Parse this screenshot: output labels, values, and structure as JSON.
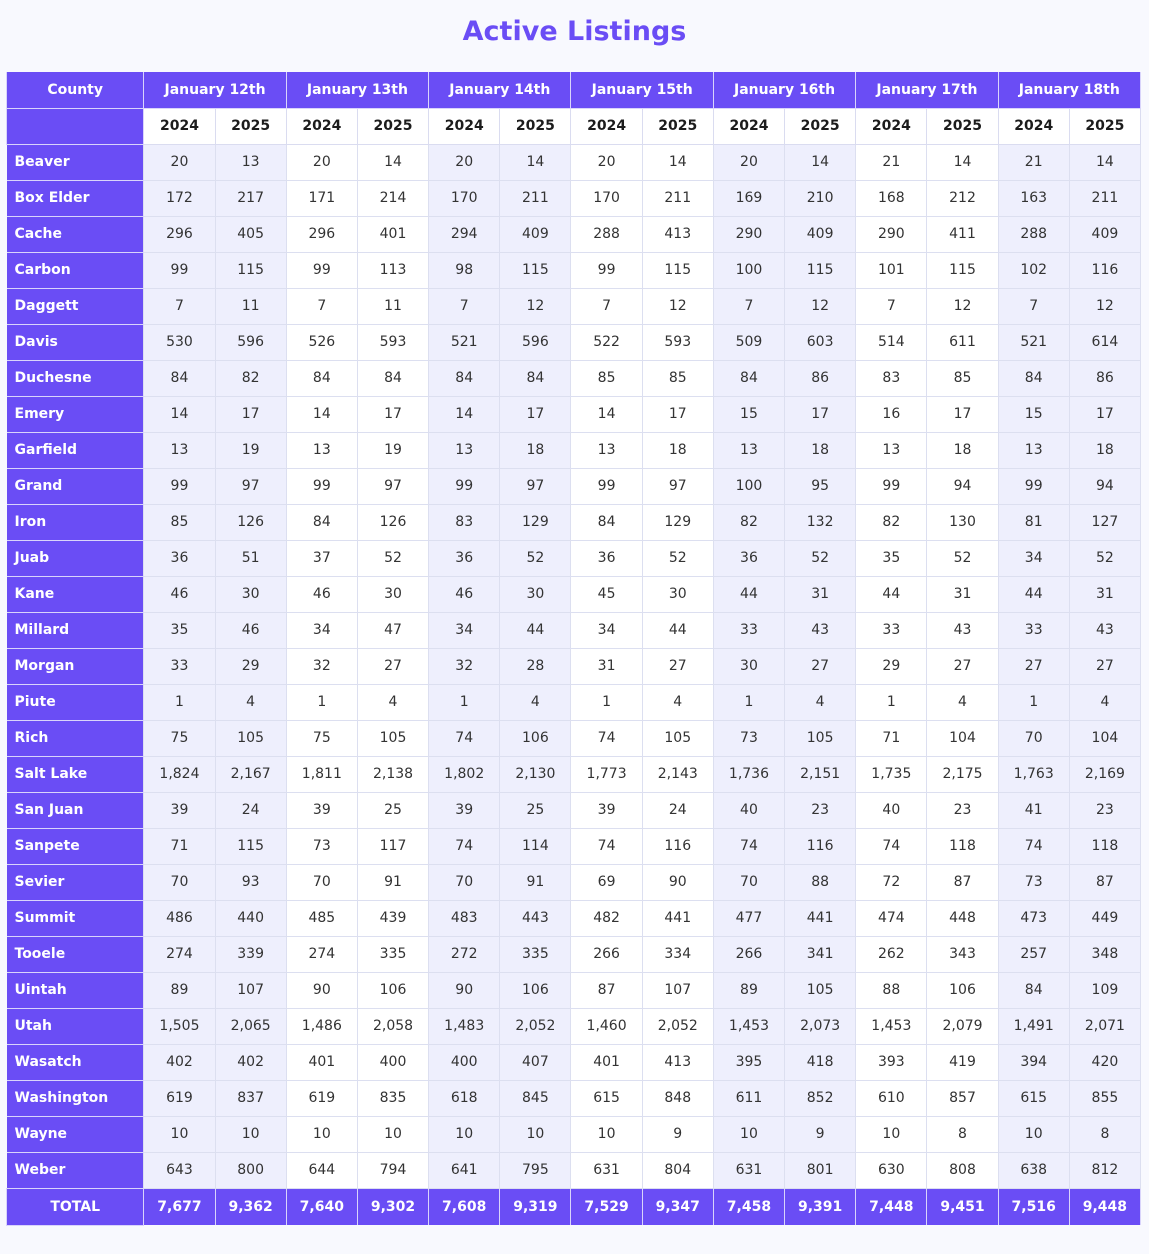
{
  "title": "Active Listings",
  "header": {
    "county_label": "County",
    "dates": [
      "January 12th",
      "January 13th",
      "January 14th",
      "January 15th",
      "January 16th",
      "January 17th",
      "January 18th"
    ],
    "years": [
      "2024",
      "2025"
    ]
  },
  "colors": {
    "accent": "#6a4df5",
    "row_light": "#eeeffd",
    "row_white": "#ffffff",
    "title": "#6a4df5"
  },
  "rows": [
    {
      "county": "Beaver",
      "values": [
        "20",
        "13",
        "20",
        "14",
        "20",
        "14",
        "20",
        "14",
        "20",
        "14",
        "21",
        "14",
        "21",
        "14"
      ]
    },
    {
      "county": "Box Elder",
      "values": [
        "172",
        "217",
        "171",
        "214",
        "170",
        "211",
        "170",
        "211",
        "169",
        "210",
        "168",
        "212",
        "163",
        "211"
      ]
    },
    {
      "county": "Cache",
      "values": [
        "296",
        "405",
        "296",
        "401",
        "294",
        "409",
        "288",
        "413",
        "290",
        "409",
        "290",
        "411",
        "288",
        "409"
      ]
    },
    {
      "county": "Carbon",
      "values": [
        "99",
        "115",
        "99",
        "113",
        "98",
        "115",
        "99",
        "115",
        "100",
        "115",
        "101",
        "115",
        "102",
        "116"
      ]
    },
    {
      "county": "Daggett",
      "values": [
        "7",
        "11",
        "7",
        "11",
        "7",
        "12",
        "7",
        "12",
        "7",
        "12",
        "7",
        "12",
        "7",
        "12"
      ]
    },
    {
      "county": "Davis",
      "values": [
        "530",
        "596",
        "526",
        "593",
        "521",
        "596",
        "522",
        "593",
        "509",
        "603",
        "514",
        "611",
        "521",
        "614"
      ]
    },
    {
      "county": "Duchesne",
      "values": [
        "84",
        "82",
        "84",
        "84",
        "84",
        "84",
        "85",
        "85",
        "84",
        "86",
        "83",
        "85",
        "84",
        "86"
      ]
    },
    {
      "county": "Emery",
      "values": [
        "14",
        "17",
        "14",
        "17",
        "14",
        "17",
        "14",
        "17",
        "15",
        "17",
        "16",
        "17",
        "15",
        "17"
      ]
    },
    {
      "county": "Garfield",
      "values": [
        "13",
        "19",
        "13",
        "19",
        "13",
        "18",
        "13",
        "18",
        "13",
        "18",
        "13",
        "18",
        "13",
        "18"
      ]
    },
    {
      "county": "Grand",
      "values": [
        "99",
        "97",
        "99",
        "97",
        "99",
        "97",
        "99",
        "97",
        "100",
        "95",
        "99",
        "94",
        "99",
        "94"
      ]
    },
    {
      "county": "Iron",
      "values": [
        "85",
        "126",
        "84",
        "126",
        "83",
        "129",
        "84",
        "129",
        "82",
        "132",
        "82",
        "130",
        "81",
        "127"
      ]
    },
    {
      "county": "Juab",
      "values": [
        "36",
        "51",
        "37",
        "52",
        "36",
        "52",
        "36",
        "52",
        "36",
        "52",
        "35",
        "52",
        "34",
        "52"
      ]
    },
    {
      "county": "Kane",
      "values": [
        "46",
        "30",
        "46",
        "30",
        "46",
        "30",
        "45",
        "30",
        "44",
        "31",
        "44",
        "31",
        "44",
        "31"
      ]
    },
    {
      "county": "Millard",
      "values": [
        "35",
        "46",
        "34",
        "47",
        "34",
        "44",
        "34",
        "44",
        "33",
        "43",
        "33",
        "43",
        "33",
        "43"
      ]
    },
    {
      "county": "Morgan",
      "values": [
        "33",
        "29",
        "32",
        "27",
        "32",
        "28",
        "31",
        "27",
        "30",
        "27",
        "29",
        "27",
        "27",
        "27"
      ]
    },
    {
      "county": "Piute",
      "values": [
        "1",
        "4",
        "1",
        "4",
        "1",
        "4",
        "1",
        "4",
        "1",
        "4",
        "1",
        "4",
        "1",
        "4"
      ]
    },
    {
      "county": "Rich",
      "values": [
        "75",
        "105",
        "75",
        "105",
        "74",
        "106",
        "74",
        "105",
        "73",
        "105",
        "71",
        "104",
        "70",
        "104"
      ]
    },
    {
      "county": "Salt Lake",
      "values": [
        "1,824",
        "2,167",
        "1,811",
        "2,138",
        "1,802",
        "2,130",
        "1,773",
        "2,143",
        "1,736",
        "2,151",
        "1,735",
        "2,175",
        "1,763",
        "2,169"
      ]
    },
    {
      "county": "San Juan",
      "values": [
        "39",
        "24",
        "39",
        "25",
        "39",
        "25",
        "39",
        "24",
        "40",
        "23",
        "40",
        "23",
        "41",
        "23"
      ]
    },
    {
      "county": "Sanpete",
      "values": [
        "71",
        "115",
        "73",
        "117",
        "74",
        "114",
        "74",
        "116",
        "74",
        "116",
        "74",
        "118",
        "74",
        "118"
      ]
    },
    {
      "county": "Sevier",
      "values": [
        "70",
        "93",
        "70",
        "91",
        "70",
        "91",
        "69",
        "90",
        "70",
        "88",
        "72",
        "87",
        "73",
        "87"
      ]
    },
    {
      "county": "Summit",
      "values": [
        "486",
        "440",
        "485",
        "439",
        "483",
        "443",
        "482",
        "441",
        "477",
        "441",
        "474",
        "448",
        "473",
        "449"
      ]
    },
    {
      "county": "Tooele",
      "values": [
        "274",
        "339",
        "274",
        "335",
        "272",
        "335",
        "266",
        "334",
        "266",
        "341",
        "262",
        "343",
        "257",
        "348"
      ]
    },
    {
      "county": "Uintah",
      "values": [
        "89",
        "107",
        "90",
        "106",
        "90",
        "106",
        "87",
        "107",
        "89",
        "105",
        "88",
        "106",
        "84",
        "109"
      ]
    },
    {
      "county": "Utah",
      "values": [
        "1,505",
        "2,065",
        "1,486",
        "2,058",
        "1,483",
        "2,052",
        "1,460",
        "2,052",
        "1,453",
        "2,073",
        "1,453",
        "2,079",
        "1,491",
        "2,071"
      ]
    },
    {
      "county": "Wasatch",
      "values": [
        "402",
        "402",
        "401",
        "400",
        "400",
        "407",
        "401",
        "413",
        "395",
        "418",
        "393",
        "419",
        "394",
        "420"
      ]
    },
    {
      "county": "Washington",
      "values": [
        "619",
        "837",
        "619",
        "835",
        "618",
        "845",
        "615",
        "848",
        "611",
        "852",
        "610",
        "857",
        "615",
        "855"
      ]
    },
    {
      "county": "Wayne",
      "values": [
        "10",
        "10",
        "10",
        "10",
        "10",
        "10",
        "10",
        "9",
        "10",
        "9",
        "10",
        "8",
        "10",
        "8"
      ]
    },
    {
      "county": "Weber",
      "values": [
        "643",
        "800",
        "644",
        "794",
        "641",
        "795",
        "631",
        "804",
        "631",
        "801",
        "630",
        "808",
        "638",
        "812"
      ]
    }
  ],
  "total": {
    "label": "TOTAL",
    "values": [
      "7,677",
      "9,362",
      "7,640",
      "9,302",
      "7,608",
      "9,319",
      "7,529",
      "9,347",
      "7,458",
      "9,391",
      "7,448",
      "9,451",
      "7,516",
      "9,448"
    ]
  }
}
